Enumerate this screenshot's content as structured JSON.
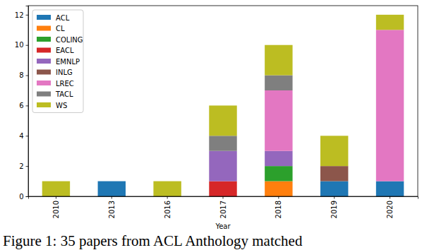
{
  "chart_data": {
    "type": "bar",
    "stacked": true,
    "legend": "upper left",
    "x_label": "Year",
    "caption": "Figure 1: 35 papers from ACL Anthology matched",
    "categories": [
      "2010",
      "2013",
      "2016",
      "2017",
      "2018",
      "2019",
      "2020"
    ],
    "series": [
      {
        "name": "ACL",
        "color": "#1f77b4",
        "values": [
          0,
          1,
          0,
          0,
          0,
          1,
          1
        ]
      },
      {
        "name": "CL",
        "color": "#ff7f0e",
        "values": [
          0,
          0,
          0,
          0,
          1,
          0,
          0
        ]
      },
      {
        "name": "COLING",
        "color": "#2ca02c",
        "values": [
          0,
          0,
          0,
          0,
          1,
          0,
          0
        ]
      },
      {
        "name": "EACL",
        "color": "#d62728",
        "values": [
          0,
          0,
          0,
          1,
          0,
          0,
          0
        ]
      },
      {
        "name": "EMNLP",
        "color": "#9467bd",
        "values": [
          0,
          0,
          0,
          2,
          1,
          0,
          0
        ]
      },
      {
        "name": "INLG",
        "color": "#8c564b",
        "values": [
          0,
          0,
          0,
          0,
          0,
          1,
          0
        ]
      },
      {
        "name": "LREC",
        "color": "#e377c2",
        "values": [
          0,
          0,
          0,
          0,
          4,
          0,
          10
        ]
      },
      {
        "name": "TACL",
        "color": "#7f7f7f",
        "values": [
          0,
          0,
          0,
          1,
          1,
          0,
          0
        ]
      },
      {
        "name": "WS",
        "color": "#bcbd22",
        "values": [
          1,
          0,
          1,
          2,
          2,
          2,
          1
        ]
      }
    ],
    "ylim": [
      0,
      12.6
    ],
    "yticks": [
      0,
      2,
      4,
      6,
      8,
      10,
      12
    ],
    "grid": false
  }
}
